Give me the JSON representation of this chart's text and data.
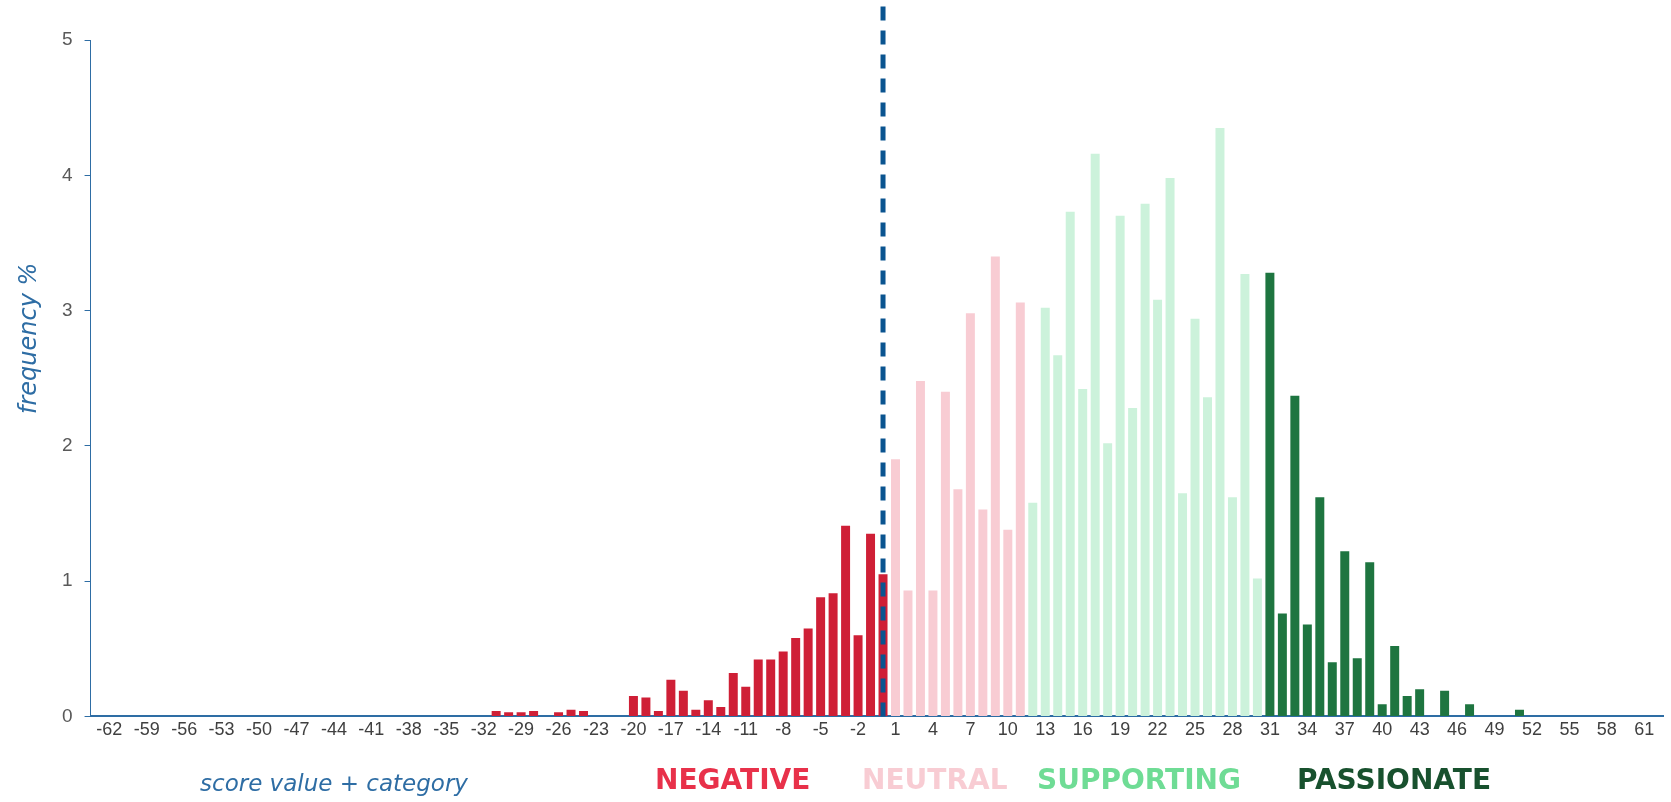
{
  "chart_data": {
    "type": "bar",
    "xlabel": "score value + category",
    "ylabel": "frequency %",
    "x": [
      -62,
      -61,
      -60,
      -59,
      -58,
      -57,
      -56,
      -55,
      -54,
      -53,
      -52,
      -51,
      -50,
      -49,
      -48,
      -47,
      -46,
      -45,
      -44,
      -43,
      -42,
      -41,
      -40,
      -39,
      -38,
      -37,
      -36,
      -35,
      -34,
      -33,
      -32,
      -31,
      -30,
      -29,
      -28,
      -27,
      -26,
      -25,
      -24,
      -23,
      -22,
      -21,
      -20,
      -19,
      -18,
      -17,
      -16,
      -15,
      -14,
      -13,
      -12,
      -11,
      -10,
      -9,
      -8,
      -7,
      -6,
      -5,
      -4,
      -3,
      -2,
      -1,
      0,
      1,
      2,
      3,
      4,
      5,
      6,
      7,
      8,
      9,
      10,
      11,
      12,
      13,
      14,
      15,
      16,
      17,
      18,
      19,
      20,
      21,
      22,
      23,
      24,
      25,
      26,
      27,
      28,
      29,
      30,
      31,
      32,
      33,
      34,
      35,
      36,
      37,
      38,
      39,
      40,
      41,
      42,
      43,
      44,
      45,
      46,
      47,
      48,
      49,
      50,
      51,
      52,
      53,
      54,
      55,
      56,
      57,
      58,
      59,
      60,
      61
    ],
    "values": [
      0,
      0,
      0,
      0,
      0,
      0,
      0,
      0,
      0,
      0,
      0,
      0,
      0,
      0,
      0,
      0,
      0,
      0,
      0,
      0,
      0,
      0,
      0,
      0,
      0,
      0,
      0,
      0,
      0,
      0,
      0,
      0.04,
      0.03,
      0.03,
      0.04,
      0,
      0.03,
      0.05,
      0.04,
      0,
      0,
      0,
      0.15,
      0.14,
      0.04,
      0.27,
      0.19,
      0.05,
      0.12,
      0.07,
      0.32,
      0.22,
      0.42,
      0.42,
      0.48,
      0.58,
      0.65,
      0.88,
      0.91,
      1.41,
      0.6,
      1.35,
      1.05,
      1.9,
      0.93,
      2.48,
      0.93,
      2.4,
      1.68,
      2.98,
      1.53,
      3.4,
      1.38,
      3.06,
      1.58,
      3.02,
      2.67,
      3.73,
      2.42,
      4.16,
      2.02,
      3.7,
      2.28,
      3.79,
      3.08,
      3.98,
      1.65,
      2.94,
      2.36,
      4.35,
      1.62,
      3.27,
      1.02,
      3.28,
      0.76,
      2.37,
      0.68,
      1.62,
      0.4,
      1.22,
      0.43,
      1.14,
      0.09,
      0.52,
      0.15,
      0.2,
      0,
      0.19,
      0,
      0.09,
      0,
      0,
      0,
      0.05,
      0,
      0,
      0,
      0,
      0,
      0,
      0,
      0,
      0,
      0
    ],
    "colors": [
      "#cf1f36",
      "#cf1f36",
      "#cf1f36",
      "#cf1f36",
      "#cf1f36",
      "#cf1f36",
      "#cf1f36",
      "#cf1f36",
      "#cf1f36",
      "#cf1f36",
      "#cf1f36",
      "#cf1f36",
      "#cf1f36",
      "#cf1f36",
      "#cf1f36",
      "#cf1f36",
      "#cf1f36",
      "#cf1f36",
      "#cf1f36",
      "#cf1f36",
      "#cf1f36",
      "#cf1f36",
      "#cf1f36",
      "#cf1f36",
      "#cf1f36",
      "#cf1f36",
      "#cf1f36",
      "#cf1f36",
      "#cf1f36",
      "#cf1f36",
      "#cf1f36",
      "#cf1f36",
      "#cf1f36",
      "#cf1f36",
      "#cf1f36",
      "#cf1f36",
      "#cf1f36",
      "#cf1f36",
      "#cf1f36",
      "#cf1f36",
      "#cf1f36",
      "#cf1f36",
      "#cf1f36",
      "#cf1f36",
      "#cf1f36",
      "#cf1f36",
      "#cf1f36",
      "#cf1f36",
      "#cf1f36",
      "#cf1f36",
      "#cf1f36",
      "#cf1f36",
      "#cf1f36",
      "#cf1f36",
      "#cf1f36",
      "#cf1f36",
      "#cf1f36",
      "#cf1f36",
      "#cf1f36",
      "#cf1f36",
      "#cf1f36",
      "#cf1f36",
      "#cf1f36",
      "#f8ccd3",
      "#f8ccd3",
      "#f8ccd3",
      "#f8ccd3",
      "#f8ccd3",
      "#f8ccd3",
      "#f8ccd3",
      "#f8ccd3",
      "#f8ccd3",
      "#f8ccd3",
      "#f8ccd3",
      "#ccf2db",
      "#ccf2db",
      "#ccf2db",
      "#ccf2db",
      "#ccf2db",
      "#ccf2db",
      "#ccf2db",
      "#ccf2db",
      "#ccf2db",
      "#ccf2db",
      "#ccf2db",
      "#ccf2db",
      "#ccf2db",
      "#ccf2db",
      "#ccf2db",
      "#ccf2db",
      "#ccf2db",
      "#ccf2db",
      "#ccf2db",
      "#1e7540",
      "#1e7540",
      "#1e7540",
      "#1e7540",
      "#1e7540",
      "#1e7540",
      "#1e7540",
      "#1e7540",
      "#1e7540",
      "#1e7540",
      "#1e7540",
      "#1e7540",
      "#1e7540",
      "#1e7540",
      "#1e7540",
      "#1e7540",
      "#1e7540",
      "#1e7540",
      "#1e7540",
      "#1e7540",
      "#1e7540",
      "#1e7540",
      "#1e7540",
      "#1e7540",
      "#1e7540",
      "#1e7540",
      "#1e7540",
      "#1e7540",
      "#1e7540",
      "#1e7540",
      "#1e7540"
    ],
    "xlim": [
      -63.5,
      62.5
    ],
    "xticks": [
      -62,
      -59,
      -56,
      -53,
      -50,
      -47,
      -44,
      -41,
      -38,
      -35,
      -32,
      -29,
      -26,
      -23,
      -20,
      -17,
      -14,
      -11,
      -8,
      -5,
      -2,
      1,
      4,
      7,
      10,
      13,
      16,
      19,
      22,
      25,
      28,
      31,
      34,
      37,
      40,
      43,
      46,
      49,
      52,
      55,
      58,
      61
    ],
    "ylim": [
      0,
      5
    ],
    "yticks": [
      0,
      1,
      2,
      3,
      4,
      5
    ],
    "grid": false,
    "legend": false,
    "ref_lines": [
      {
        "axis": "x",
        "value": 0,
        "color": "#0a5490",
        "line_style": "dashed"
      }
    ],
    "annotations": [
      "NEGATIVE",
      "NEUTRAL",
      "SUPPORTING",
      "PASSIONATE"
    ]
  }
}
